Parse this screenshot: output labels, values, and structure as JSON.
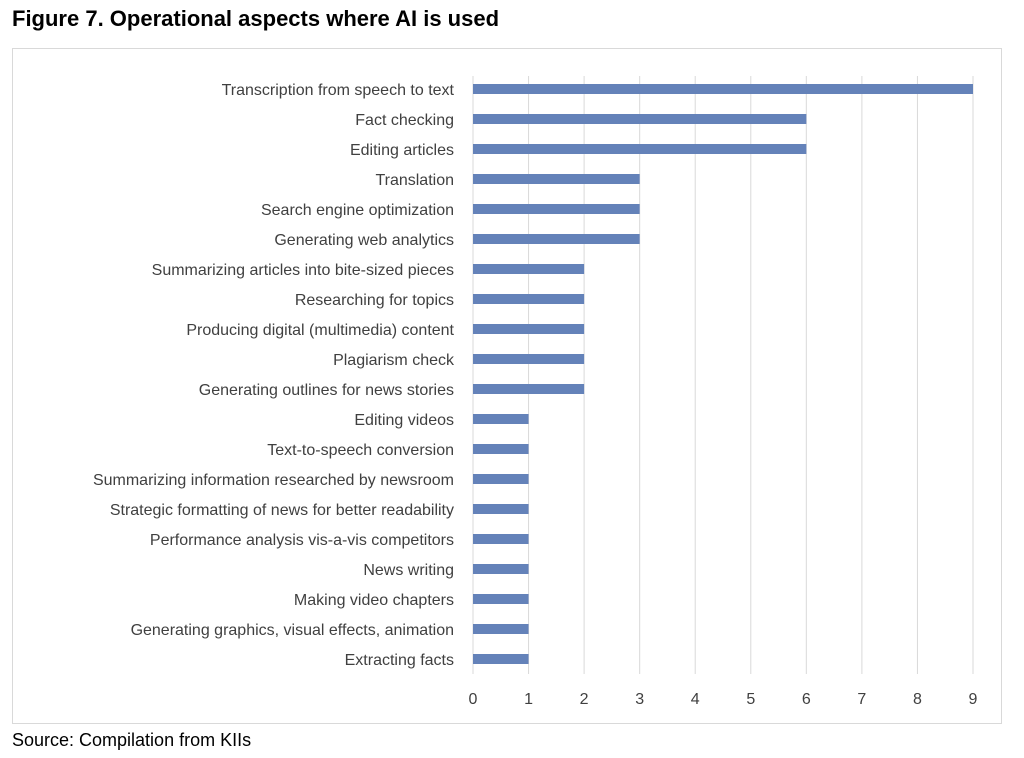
{
  "title": "Figure 7. Operational aspects where AI is used",
  "source": "Source: Compilation from KIIs",
  "colors": {
    "bar": "#6482b9",
    "grid": "#d9d9d9",
    "text": "#404040"
  },
  "chart_data": {
    "type": "bar",
    "orientation": "horizontal",
    "categories": [
      "Transcription from speech to text",
      "Fact checking",
      "Editing articles",
      "Translation",
      "Search engine optimization",
      "Generating web analytics",
      "Summarizing articles into bite-sized pieces",
      "Researching for topics",
      "Producing digital (multimedia) content",
      "Plagiarism check",
      "Generating outlines for news stories",
      "Editing videos",
      "Text-to-speech conversion",
      "Summarizing information researched by newsroom",
      "Strategic formatting of news for better readability",
      "Performance analysis vis-a-vis competitors",
      "News writing",
      "Making video chapters",
      "Generating graphics, visual effects, animation",
      "Extracting facts"
    ],
    "values": [
      9,
      6,
      6,
      3,
      3,
      3,
      2,
      2,
      2,
      2,
      2,
      1,
      1,
      1,
      1,
      1,
      1,
      1,
      1,
      1
    ],
    "xlim": [
      0,
      9
    ],
    "xticks": [
      "0",
      "1",
      "2",
      "3",
      "4",
      "5",
      "6",
      "7",
      "8",
      "9"
    ],
    "grid": true,
    "legend": "none"
  }
}
